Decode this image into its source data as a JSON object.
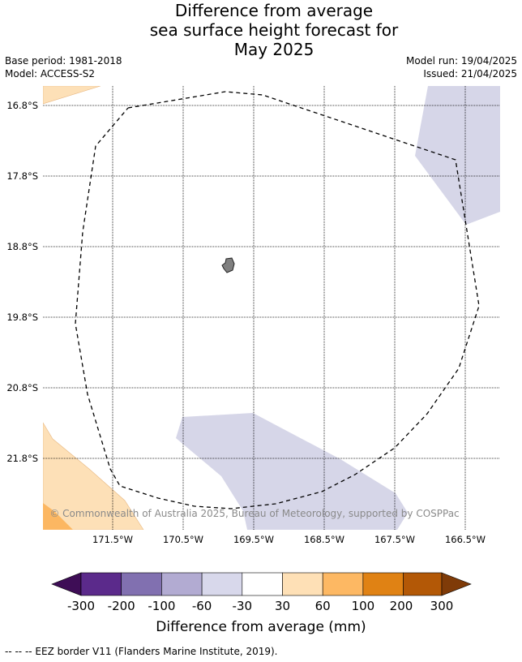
{
  "header": {
    "title_lines": [
      "Difference from average",
      "sea surface height forecast for",
      "May 2025"
    ],
    "base_period": "Base period: 1981-2018",
    "model": "Model: ACCESS-S2",
    "model_run": "Model run: 19/04/2025",
    "issued": "Issued: 21/04/2025"
  },
  "map": {
    "lat_labels": [
      "16.8°S",
      "17.8°S",
      "18.8°S",
      "19.8°S",
      "20.8°S",
      "21.8°S"
    ],
    "lon_labels": [
      "171.5°W",
      "170.5°W",
      "169.5°W",
      "168.5°W",
      "167.5°W",
      "166.5°W"
    ],
    "copyright": "© Commonwealth of Australia 2025, Bureau of Meteorology, supported by COSPPac",
    "colors": {
      "light_purple": "#d6d6e8",
      "light_orange": "#fde0b7",
      "orange": "#fcb762",
      "land": "#808080"
    }
  },
  "colorbar": {
    "title": "Difference from average (mm)",
    "ticks": [
      "-300",
      "-200",
      "-100",
      "-60",
      "-30",
      "30",
      "60",
      "100",
      "200",
      "300"
    ],
    "colors": [
      "#3e0d56",
      "#5b2a8b",
      "#8170b0",
      "#b2abd2",
      "#d8d8eb",
      "#ffffff",
      "#fee0b6",
      "#fdb863",
      "#e08214",
      "#b35806",
      "#7f3b08"
    ]
  },
  "footer": {
    "legend": "--  --  -- EEZ border V11 (Flanders Marine Institute, 2019)."
  }
}
